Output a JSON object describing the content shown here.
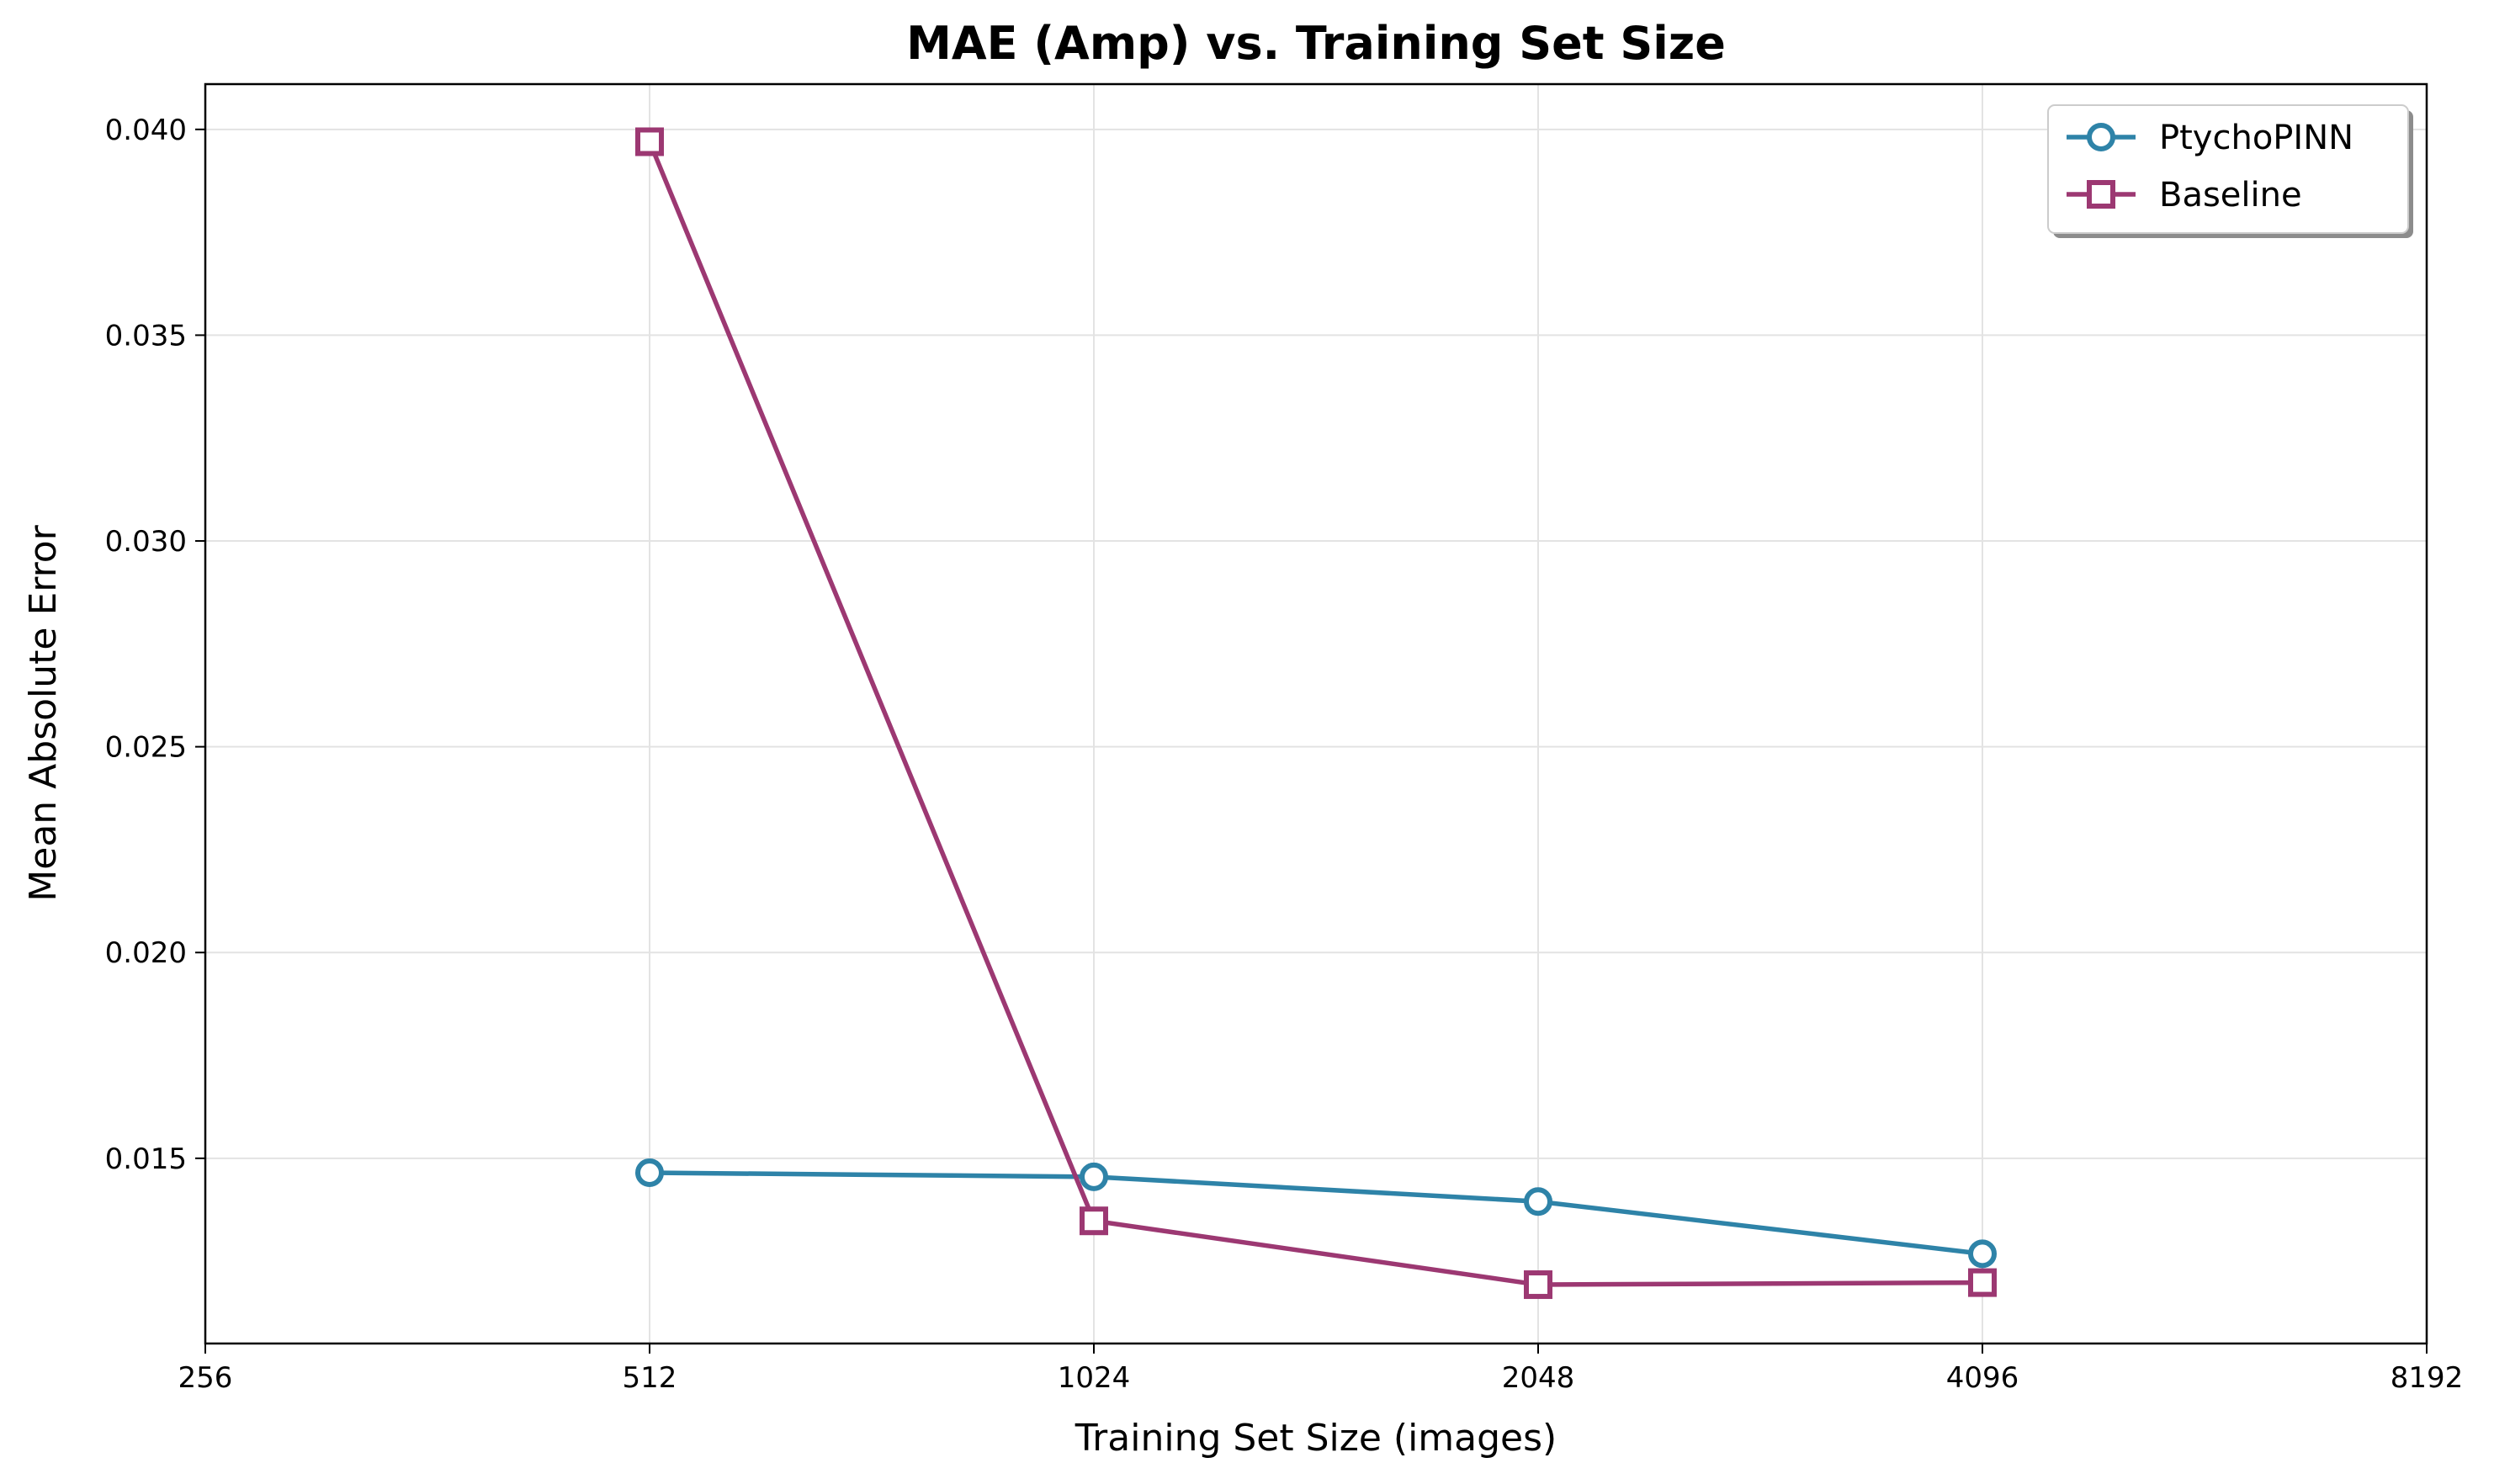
{
  "chart_data": {
    "type": "line",
    "title": "MAE (Amp) vs. Training Set Size",
    "xlabel": "Training Set Size (images)",
    "ylabel": "Mean Absolute Error",
    "x_scale": "log2",
    "xlim": [
      256,
      8192
    ],
    "ylim": [
      0.0105,
      0.0411
    ],
    "x_ticks": [
      256,
      512,
      1024,
      2048,
      4096,
      8192
    ],
    "x_tick_labels": [
      "256",
      "512",
      "1024",
      "2048",
      "4096",
      "8192"
    ],
    "y_ticks": [
      0.015,
      0.02,
      0.025,
      0.03,
      0.035,
      0.04
    ],
    "y_tick_labels": [
      "0.015",
      "0.020",
      "0.025",
      "0.030",
      "0.035",
      "0.040"
    ],
    "grid": true,
    "legend_position": "top-right",
    "x": [
      512,
      1024,
      2048,
      4096
    ],
    "series": [
      {
        "name": "PtychoPINN",
        "values": [
          0.01465,
          0.01455,
          0.01395,
          0.01268
        ],
        "color": "#2e83a8",
        "marker": "circle"
      },
      {
        "name": "Baseline",
        "values": [
          0.0397,
          0.01348,
          0.01193,
          0.01198
        ],
        "color": "#9c3872",
        "marker": "square"
      }
    ]
  }
}
